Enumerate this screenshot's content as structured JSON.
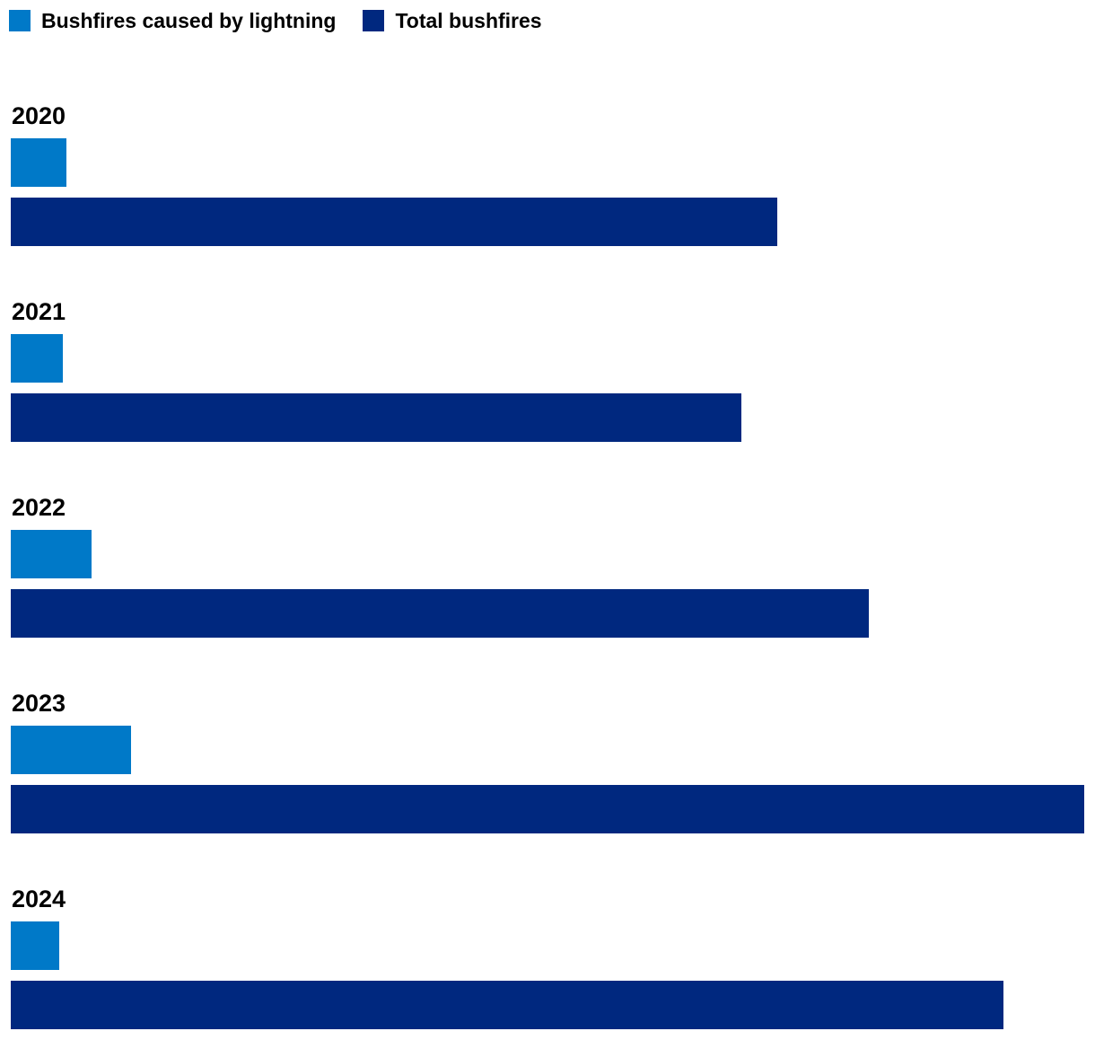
{
  "chart_data": {
    "type": "bar",
    "orientation": "horizontal",
    "categories": [
      "2020",
      "2021",
      "2022",
      "2023",
      "2024"
    ],
    "series": [
      {
        "name": "Bushfires caused by lightning",
        "color": "#0079c8",
        "values": [
          62,
          58,
          90,
          134,
          54
        ]
      },
      {
        "name": "Total bushfires",
        "color": "#00287f",
        "values": [
          854,
          814,
          956,
          1196,
          1106
        ]
      }
    ],
    "xlim": [
      0,
      1196
    ],
    "grid": false,
    "legend_position": "top-left",
    "title": "",
    "xlabel": "",
    "ylabel": ""
  }
}
